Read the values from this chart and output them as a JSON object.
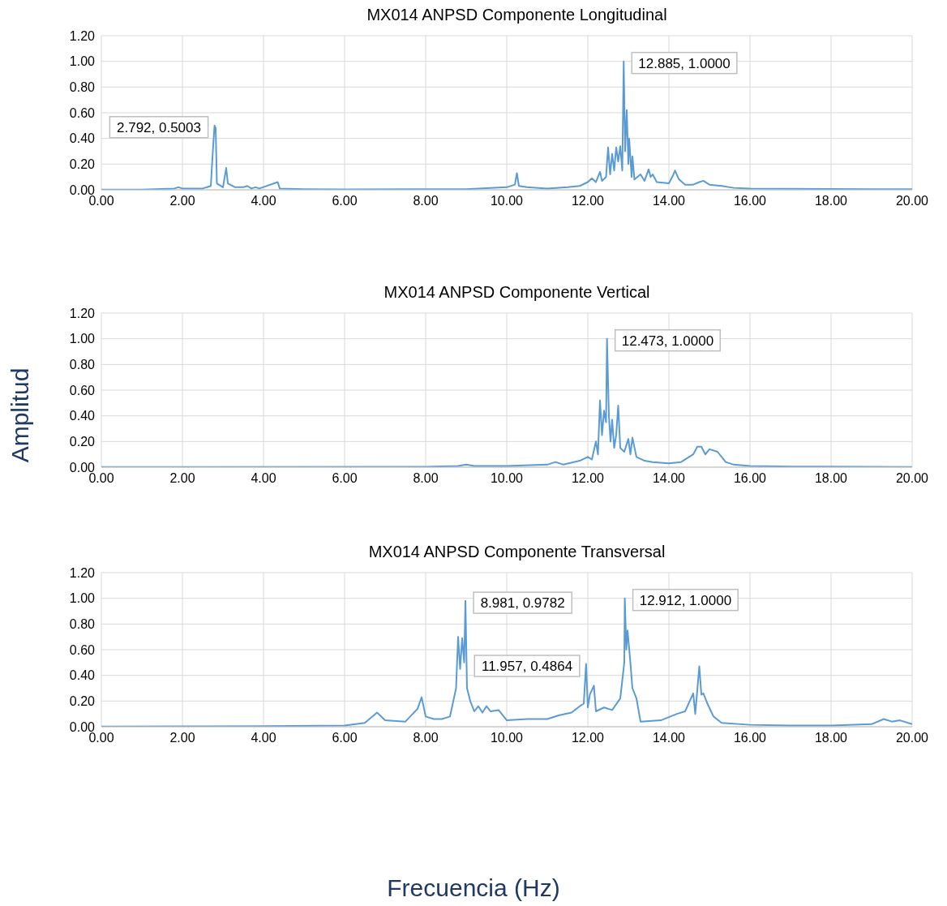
{
  "chart_data": [
    {
      "type": "line",
      "title": "MX014 ANPSD Componente Longitudinal",
      "grid": true,
      "marker": "none",
      "legend": false,
      "xlim": [
        0,
        20
      ],
      "ylim": [
        0,
        1.2
      ],
      "xticks": [
        {
          "value": 0,
          "label": "0.00"
        },
        {
          "value": 2,
          "label": "2.00"
        },
        {
          "value": 4,
          "label": "4.00"
        },
        {
          "value": 6,
          "label": "6.00"
        },
        {
          "value": 8,
          "label": "8.00"
        },
        {
          "value": 10,
          "label": "10.00"
        },
        {
          "value": 12,
          "label": "12.00"
        },
        {
          "value": 14,
          "label": "14.00"
        },
        {
          "value": 16,
          "label": "16.00"
        },
        {
          "value": 18,
          "label": "18.00"
        },
        {
          "value": 20,
          "label": "20.00"
        }
      ],
      "yticks": [
        {
          "value": 0,
          "label": "0.00"
        },
        {
          "value": 0.2,
          "label": "0.20"
        },
        {
          "value": 0.4,
          "label": "0.40"
        },
        {
          "value": 0.6,
          "label": "0.60"
        },
        {
          "value": 0.8,
          "label": "0.80"
        },
        {
          "value": 1,
          "label": "1.00"
        },
        {
          "value": 1.2,
          "label": "1.20"
        }
      ],
      "series": [
        {
          "color": "#5b9bd5",
          "x": [
            0,
            1.0,
            1.8,
            1.9,
            2.0,
            2.5,
            2.7,
            2.75,
            2.792,
            2.82,
            2.85,
            3.0,
            3.08,
            3.12,
            3.3,
            3.5,
            3.6,
            3.7,
            3.8,
            3.9,
            4.35,
            4.4,
            5,
            6,
            8,
            9,
            10,
            10.2,
            10.25,
            10.3,
            10.5,
            11,
            11.5,
            11.8,
            12,
            12.1,
            12.2,
            12.3,
            12.35,
            12.45,
            12.5,
            12.55,
            12.6,
            12.65,
            12.7,
            12.75,
            12.8,
            12.85,
            12.885,
            12.92,
            12.96,
            13.0,
            13.02,
            13.08,
            13.1,
            13.15,
            13.3,
            13.4,
            13.5,
            13.55,
            13.6,
            13.7,
            14.0,
            14.1,
            14.15,
            14.25,
            14.4,
            14.6,
            14.75,
            14.85,
            15,
            15.3,
            15.6,
            16,
            17,
            18,
            19,
            20
          ],
          "values": [
            0.002,
            0.002,
            0.01,
            0.02,
            0.01,
            0.01,
            0.03,
            0.3,
            0.5,
            0.48,
            0.05,
            0.02,
            0.17,
            0.05,
            0.02,
            0.02,
            0.03,
            0.01,
            0.02,
            0.01,
            0.06,
            0.01,
            0.005,
            0.003,
            0.005,
            0.005,
            0.02,
            0.04,
            0.13,
            0.03,
            0.02,
            0.01,
            0.02,
            0.03,
            0.06,
            0.09,
            0.06,
            0.14,
            0.07,
            0.1,
            0.33,
            0.12,
            0.28,
            0.15,
            0.33,
            0.22,
            0.34,
            0.15,
            1.0,
            0.3,
            0.62,
            0.2,
            0.4,
            0.1,
            0.26,
            0.08,
            0.12,
            0.07,
            0.16,
            0.1,
            0.12,
            0.06,
            0.05,
            0.11,
            0.15,
            0.08,
            0.04,
            0.04,
            0.06,
            0.07,
            0.04,
            0.03,
            0.015,
            0.01,
            0.008,
            0.006,
            0.005,
            0.004
          ]
        }
      ],
      "annotations": [
        {
          "text": "2.792, 0.5003",
          "x": 2.792,
          "y": 0.5003
        },
        {
          "text": "12.885, 1.0000",
          "x": 12.885,
          "y": 1.0
        }
      ]
    },
    {
      "type": "line",
      "title": "MX014 ANPSD Componente Vertical",
      "ylabel": "Amplitud",
      "grid": true,
      "marker": "none",
      "legend": false,
      "xlim": [
        0,
        20
      ],
      "ylim": [
        0,
        1.2
      ],
      "xticks": [
        {
          "value": 0,
          "label": "0.00"
        },
        {
          "value": 2,
          "label": "2.00"
        },
        {
          "value": 4,
          "label": "4.00"
        },
        {
          "value": 6,
          "label": "6.00"
        },
        {
          "value": 8,
          "label": "8.00"
        },
        {
          "value": 10,
          "label": "10.00"
        },
        {
          "value": 12,
          "label": "12.00"
        },
        {
          "value": 14,
          "label": "14.00"
        },
        {
          "value": 16,
          "label": "16.00"
        },
        {
          "value": 18,
          "label": "18.00"
        },
        {
          "value": 20,
          "label": "20.00"
        }
      ],
      "yticks": [
        {
          "value": 0,
          "label": "0.00"
        },
        {
          "value": 0.2,
          "label": "0.20"
        },
        {
          "value": 0.4,
          "label": "0.40"
        },
        {
          "value": 0.6,
          "label": "0.60"
        },
        {
          "value": 0.8,
          "label": "0.80"
        },
        {
          "value": 1,
          "label": "1.00"
        },
        {
          "value": 1.2,
          "label": "1.20"
        }
      ],
      "series": [
        {
          "color": "#5b9bd5",
          "x": [
            0,
            8,
            8.8,
            9,
            9.2,
            10,
            11,
            11.2,
            11.4,
            11.8,
            12.0,
            12.1,
            12.2,
            12.25,
            12.3,
            12.35,
            12.4,
            12.45,
            12.473,
            12.52,
            12.56,
            12.6,
            12.65,
            12.7,
            12.75,
            12.8,
            12.9,
            13.0,
            13.05,
            13.1,
            13.2,
            13.4,
            13.6,
            14.0,
            14.3,
            14.6,
            14.7,
            14.8,
            14.9,
            15.0,
            15.2,
            15.4,
            15.6,
            16,
            17,
            20
          ],
          "values": [
            0.002,
            0.003,
            0.01,
            0.02,
            0.01,
            0.01,
            0.02,
            0.04,
            0.02,
            0.05,
            0.08,
            0.06,
            0.2,
            0.1,
            0.52,
            0.25,
            0.44,
            0.35,
            1.0,
            0.4,
            0.2,
            0.37,
            0.15,
            0.25,
            0.48,
            0.15,
            0.12,
            0.22,
            0.1,
            0.23,
            0.08,
            0.05,
            0.04,
            0.03,
            0.04,
            0.1,
            0.16,
            0.16,
            0.1,
            0.14,
            0.12,
            0.04,
            0.02,
            0.01,
            0.005,
            0.002
          ]
        }
      ],
      "annotations": [
        {
          "text": "12.473, 1.0000",
          "x": 12.473,
          "y": 1.0
        }
      ]
    },
    {
      "type": "line",
      "title": "MX014 ANPSD Componente Transversal",
      "xlabel": "Frecuencia (Hz)",
      "grid": true,
      "marker": "none",
      "legend": false,
      "xlim": [
        0,
        20
      ],
      "ylim": [
        0,
        1.2
      ],
      "xticks": [
        {
          "value": 0,
          "label": "0.00"
        },
        {
          "value": 2,
          "label": "2.00"
        },
        {
          "value": 4,
          "label": "4.00"
        },
        {
          "value": 6,
          "label": "6.00"
        },
        {
          "value": 8,
          "label": "8.00"
        },
        {
          "value": 10,
          "label": "10.00"
        },
        {
          "value": 12,
          "label": "12.00"
        },
        {
          "value": 14,
          "label": "14.00"
        },
        {
          "value": 16,
          "label": "16.00"
        },
        {
          "value": 18,
          "label": "18.00"
        },
        {
          "value": 20,
          "label": "20.00"
        }
      ],
      "yticks": [
        {
          "value": 0,
          "label": "0.00"
        },
        {
          "value": 0.2,
          "label": "0.20"
        },
        {
          "value": 0.4,
          "label": "0.40"
        },
        {
          "value": 0.6,
          "label": "0.60"
        },
        {
          "value": 0.8,
          "label": "0.80"
        },
        {
          "value": 1,
          "label": "1.00"
        },
        {
          "value": 1.2,
          "label": "1.20"
        }
      ],
      "series": [
        {
          "color": "#5b9bd5",
          "x": [
            0,
            2,
            4,
            6,
            6.5,
            6.8,
            7.0,
            7.5,
            7.8,
            7.9,
            8.0,
            8.2,
            8.4,
            8.6,
            8.75,
            8.8,
            8.85,
            8.9,
            8.95,
            8.981,
            9.02,
            9.1,
            9.2,
            9.3,
            9.4,
            9.5,
            9.6,
            9.8,
            10,
            10.5,
            11,
            11.3,
            11.6,
            11.8,
            11.9,
            11.957,
            12.0,
            12.05,
            12.15,
            12.2,
            12.4,
            12.6,
            12.8,
            12.9,
            12.912,
            12.95,
            12.98,
            13.05,
            13.1,
            13.2,
            13.3,
            13.8,
            14.2,
            14.4,
            14.6,
            14.65,
            14.75,
            14.8,
            14.85,
            14.95,
            15.1,
            15.3,
            16,
            17,
            18,
            19,
            19.3,
            19.5,
            19.7,
            20
          ],
          "values": [
            0.002,
            0.003,
            0.004,
            0.01,
            0.03,
            0.11,
            0.05,
            0.04,
            0.14,
            0.23,
            0.08,
            0.06,
            0.06,
            0.08,
            0.3,
            0.7,
            0.45,
            0.69,
            0.5,
            0.98,
            0.3,
            0.2,
            0.12,
            0.16,
            0.11,
            0.16,
            0.12,
            0.13,
            0.05,
            0.06,
            0.06,
            0.09,
            0.11,
            0.16,
            0.18,
            0.49,
            0.15,
            0.25,
            0.32,
            0.12,
            0.15,
            0.13,
            0.22,
            0.5,
            1.0,
            0.6,
            0.75,
            0.5,
            0.3,
            0.22,
            0.04,
            0.05,
            0.1,
            0.12,
            0.26,
            0.1,
            0.47,
            0.25,
            0.26,
            0.18,
            0.08,
            0.03,
            0.015,
            0.01,
            0.01,
            0.02,
            0.06,
            0.04,
            0.05,
            0.02
          ]
        }
      ],
      "annotations": [
        {
          "text": "8.981, 0.9782",
          "x": 8.981,
          "y": 0.9782
        },
        {
          "text": "12.912, 1.0000",
          "x": 12.912,
          "y": 1.0
        },
        {
          "text": "11.957, 0.4864",
          "x": 11.957,
          "y": 0.4864
        }
      ]
    }
  ]
}
